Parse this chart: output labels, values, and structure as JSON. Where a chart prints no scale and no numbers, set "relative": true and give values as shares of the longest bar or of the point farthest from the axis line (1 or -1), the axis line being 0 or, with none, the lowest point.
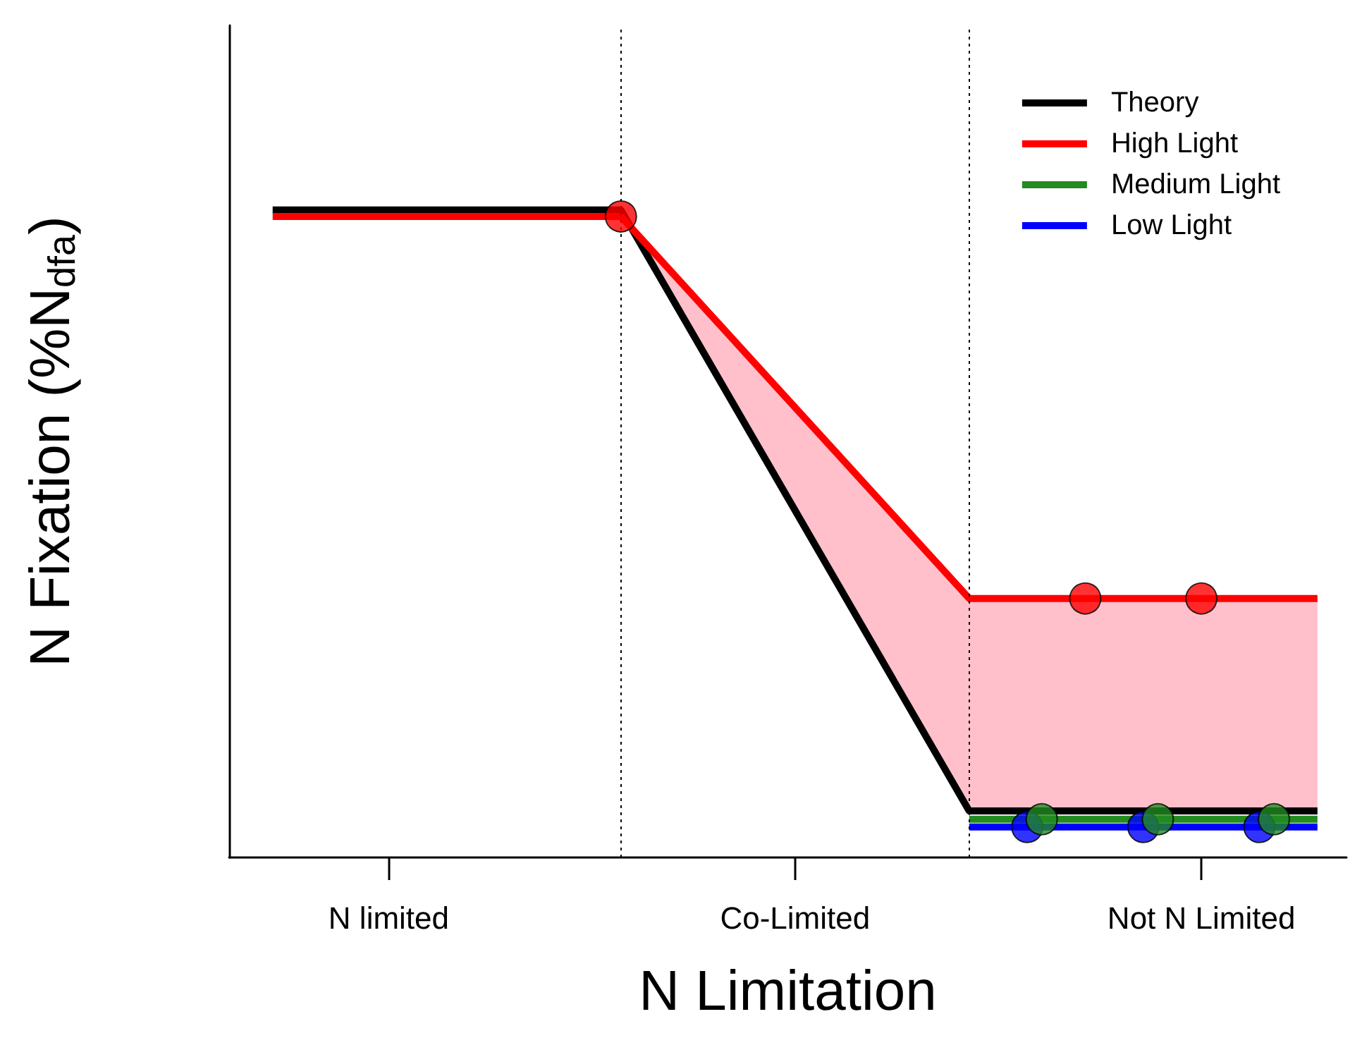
{
  "chart_data": {
    "type": "line",
    "relative": true,
    "xlabel": "N Limitation",
    "ylabel": "N Fixation (%N$_{dfa}$)",
    "categories": [
      null,
      null,
      null,
      null,
      null,
      null,
      null,
      null,
      null,
      null,
      null,
      "N limited",
      null,
      null,
      null,
      null,
      null,
      null,
      null,
      null,
      null,
      null,
      null,
      null,
      null,
      null,
      null,
      null,
      null,
      null,
      null,
      null,
      null,
      null,
      null,
      null,
      null,
      null,
      null,
      "Co-Limited",
      null,
      null,
      null,
      null,
      null,
      null,
      null,
      null,
      null,
      null,
      null,
      null,
      null,
      null,
      null,
      null,
      null,
      null,
      null,
      null,
      null,
      null,
      null,
      null,
      null,
      null,
      null,
      "Not N Limited",
      null,
      null,
      null,
      null,
      null,
      null,
      null,
      null,
      null,
      null
    ],
    "legend": "top right",
    "line_style": "solid",
    "series": [
      {
        "name": "Theory",
        "color": "#000000",
        "values": [
          null,
          null,
          null,
          1,
          null,
          null,
          null,
          null,
          null,
          null,
          null,
          null,
          null,
          null,
          null,
          null,
          null,
          null,
          null,
          null,
          null,
          null,
          null,
          null,
          null,
          null,
          null,
          1,
          null,
          null,
          null,
          null,
          null,
          null,
          null,
          null,
          null,
          null,
          null,
          null,
          null,
          null,
          null,
          null,
          null,
          null,
          null,
          null,
          null,
          null,
          null,
          0.072,
          null,
          null,
          null,
          null,
          null,
          null,
          null,
          null,
          null,
          null,
          null,
          null,
          null,
          null,
          null,
          null,
          null,
          null,
          null,
          null,
          null,
          null,
          null,
          0.072,
          null,
          null
        ]
      },
      {
        "name": "High Light",
        "color": "#ff0000",
        "values": [
          null,
          null,
          null,
          0.99,
          null,
          null,
          null,
          null,
          null,
          null,
          null,
          null,
          null,
          null,
          null,
          null,
          null,
          null,
          null,
          null,
          null,
          null,
          null,
          null,
          null,
          null,
          null,
          0.99,
          null,
          null,
          null,
          null,
          null,
          null,
          null,
          null,
          null,
          null,
          null,
          null,
          null,
          null,
          null,
          null,
          null,
          null,
          null,
          null,
          null,
          null,
          null,
          0.4,
          null,
          null,
          null,
          null,
          null,
          null,
          null,
          null,
          null,
          null,
          null,
          null,
          null,
          null,
          null,
          null,
          null,
          null,
          null,
          null,
          null,
          null,
          null,
          0.4,
          null,
          null
        ],
        "lower": [
          null,
          null,
          null,
          0.99,
          null,
          null,
          null,
          null,
          null,
          null,
          null,
          null,
          null,
          null,
          null,
          null,
          null,
          null,
          null,
          null,
          null,
          null,
          null,
          null,
          null,
          null,
          null,
          0.99,
          null,
          null,
          null,
          null,
          null,
          null,
          null,
          null,
          null,
          null,
          null,
          null,
          null,
          null,
          null,
          null,
          null,
          null,
          null,
          null,
          null,
          null,
          null,
          0.072,
          null,
          null,
          null,
          null,
          null,
          null,
          null,
          null,
          null,
          null,
          null,
          null,
          null,
          null,
          null,
          null,
          null,
          null,
          null,
          null,
          null,
          null,
          null,
          0.072,
          null,
          null
        ],
        "upper": [
          null,
          null,
          null,
          0.99,
          null,
          null,
          null,
          null,
          null,
          null,
          null,
          null,
          null,
          null,
          null,
          null,
          null,
          null,
          null,
          null,
          null,
          null,
          null,
          null,
          null,
          null,
          null,
          0.99,
          null,
          null,
          null,
          null,
          null,
          null,
          null,
          null,
          null,
          null,
          null,
          null,
          null,
          null,
          null,
          null,
          null,
          null,
          null,
          null,
          null,
          null,
          null,
          0.4,
          null,
          null,
          null,
          null,
          null,
          null,
          null,
          null,
          null,
          null,
          null,
          null,
          null,
          null,
          null,
          null,
          null,
          null,
          null,
          null,
          null,
          null,
          null,
          0.4,
          null,
          null
        ]
      },
      {
        "name": "Medium Light",
        "color": "#228b22",
        "values": [
          null,
          null,
          null,
          null,
          null,
          null,
          null,
          null,
          null,
          null,
          null,
          null,
          null,
          null,
          null,
          null,
          null,
          null,
          null,
          null,
          null,
          null,
          null,
          null,
          null,
          null,
          null,
          null,
          null,
          null,
          null,
          null,
          null,
          null,
          null,
          null,
          null,
          null,
          null,
          null,
          null,
          null,
          null,
          null,
          null,
          null,
          null,
          null,
          null,
          null,
          null,
          0.059,
          null,
          null,
          null,
          null,
          null,
          null,
          null,
          null,
          null,
          null,
          null,
          null,
          null,
          null,
          null,
          null,
          null,
          null,
          null,
          null,
          null,
          null,
          null,
          0.059,
          null,
          null
        ]
      },
      {
        "name": "Low Light",
        "color": "#0000ff",
        "values": [
          null,
          null,
          null,
          null,
          null,
          null,
          null,
          null,
          null,
          null,
          null,
          null,
          null,
          null,
          null,
          null,
          null,
          null,
          null,
          null,
          null,
          null,
          null,
          null,
          null,
          null,
          null,
          null,
          null,
          null,
          null,
          null,
          null,
          null,
          null,
          null,
          null,
          null,
          null,
          null,
          null,
          null,
          null,
          null,
          null,
          null,
          null,
          null,
          null,
          null,
          null,
          0.047,
          null,
          null,
          null,
          null,
          null,
          null,
          null,
          null,
          null,
          null,
          null,
          null,
          null,
          null,
          null,
          null,
          null,
          null,
          null,
          null,
          null,
          null,
          null,
          0.047,
          null,
          null
        ]
      },
      {
        "type": "scatter",
        "color": "#0000ff",
        "marker": "circle",
        "values": [
          null,
          null,
          null,
          null,
          null,
          null,
          null,
          null,
          null,
          null,
          null,
          null,
          null,
          null,
          null,
          null,
          null,
          null,
          null,
          null,
          null,
          null,
          null,
          null,
          null,
          null,
          null,
          null,
          null,
          null,
          null,
          null,
          null,
          null,
          null,
          null,
          null,
          null,
          null,
          null,
          null,
          null,
          null,
          null,
          null,
          null,
          null,
          null,
          null,
          null,
          null,
          null,
          null,
          null,
          null,
          0.047,
          null,
          null,
          null,
          null,
          null,
          null,
          null,
          0.047,
          null,
          null,
          null,
          null,
          null,
          null,
          null,
          0.047,
          null,
          null,
          null,
          null,
          null,
          null
        ]
      },
      {
        "type": "scatter",
        "color": "#228b22",
        "marker": "circle",
        "values": [
          null,
          null,
          null,
          null,
          null,
          null,
          null,
          null,
          null,
          null,
          null,
          null,
          null,
          null,
          null,
          null,
          null,
          null,
          null,
          null,
          null,
          null,
          null,
          null,
          null,
          null,
          null,
          null,
          null,
          null,
          null,
          null,
          null,
          null,
          null,
          null,
          null,
          null,
          null,
          null,
          null,
          null,
          null,
          null,
          null,
          null,
          null,
          null,
          null,
          null,
          null,
          null,
          null,
          null,
          null,
          null,
          0.059,
          null,
          null,
          null,
          null,
          null,
          null,
          null,
          0.059,
          null,
          null,
          null,
          null,
          null,
          null,
          null,
          0.059,
          null,
          null,
          null,
          null,
          null
        ]
      },
      {
        "type": "scatter",
        "color": "#ff0000",
        "marker": "circle",
        "values": [
          null,
          null,
          null,
          null,
          null,
          null,
          null,
          null,
          null,
          null,
          null,
          null,
          null,
          null,
          null,
          null,
          null,
          null,
          null,
          null,
          null,
          null,
          null,
          null,
          null,
          null,
          null,
          0.99,
          null,
          null,
          null,
          null,
          null,
          null,
          null,
          null,
          null,
          null,
          null,
          null,
          null,
          null,
          null,
          null,
          null,
          null,
          null,
          null,
          null,
          null,
          null,
          null,
          null,
          null,
          null,
          null,
          null,
          null,
          null,
          0.4,
          null,
          null,
          null,
          null,
          null,
          null,
          null,
          0.4,
          null,
          null,
          null,
          null,
          null,
          null,
          null,
          null,
          null,
          null
        ]
      }
    ]
  }
}
